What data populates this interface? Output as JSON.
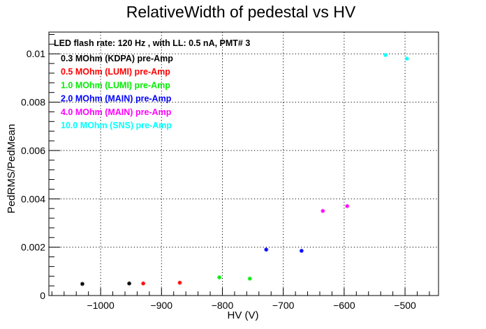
{
  "chart_data": {
    "type": "scatter",
    "title": "RelativeWidth of pedestal vs HV",
    "xlabel": "HV (V)",
    "ylabel": "PedRMS/PedMean",
    "xlim": [
      -1085,
      -445
    ],
    "ylim": [
      0,
      0.0109
    ],
    "x_ticks": [
      -1000,
      -900,
      -800,
      -700,
      -600,
      -500
    ],
    "x_tick_labels": [
      "−1000",
      "−900",
      "−800",
      "−700",
      "−600",
      "−500"
    ],
    "y_ticks": [
      0,
      0.002,
      0.004,
      0.006,
      0.008,
      0.01
    ],
    "y_tick_labels": [
      "0",
      "0.002",
      "0.004",
      "0.006",
      "0.008",
      "0.01"
    ],
    "grid": true,
    "legend_placement": "top-left",
    "legend_header": "LED flash rate: 120 Hz , with LL: 0.5 nA, PMT# 3",
    "series": [
      {
        "name": "0.3 MOhm (KDPA) pre-Amp",
        "color": "#000000",
        "x": [
          -1030,
          -953
        ],
        "y": [
          0.00048,
          0.0005
        ]
      },
      {
        "name": "0.5 MOhm (LUMI) pre-Amp",
        "color": "#ff0000",
        "x": [
          -930,
          -870
        ],
        "y": [
          0.0005,
          0.00053
        ]
      },
      {
        "name": "1.0 MOhm (LUMI) pre-Amp",
        "color": "#00ee00",
        "x": [
          -805,
          -755
        ],
        "y": [
          0.00075,
          0.0007
        ]
      },
      {
        "name": "2.0 MOhm (MAIN) pre-Amp",
        "color": "#0000ff",
        "x": [
          -728,
          -670
        ],
        "y": [
          0.0019,
          0.00185
        ]
      },
      {
        "name": "4.0 MOhm (MAIN) pre-Amp",
        "color": "#ff00ff",
        "x": [
          -635,
          -595
        ],
        "y": [
          0.0035,
          0.0037
        ]
      },
      {
        "name": "10.0 MOhm (SNS) pre-Amp",
        "color": "#00ffff",
        "x": [
          -532,
          -497
        ],
        "y": [
          0.00995,
          0.0098
        ]
      }
    ]
  }
}
